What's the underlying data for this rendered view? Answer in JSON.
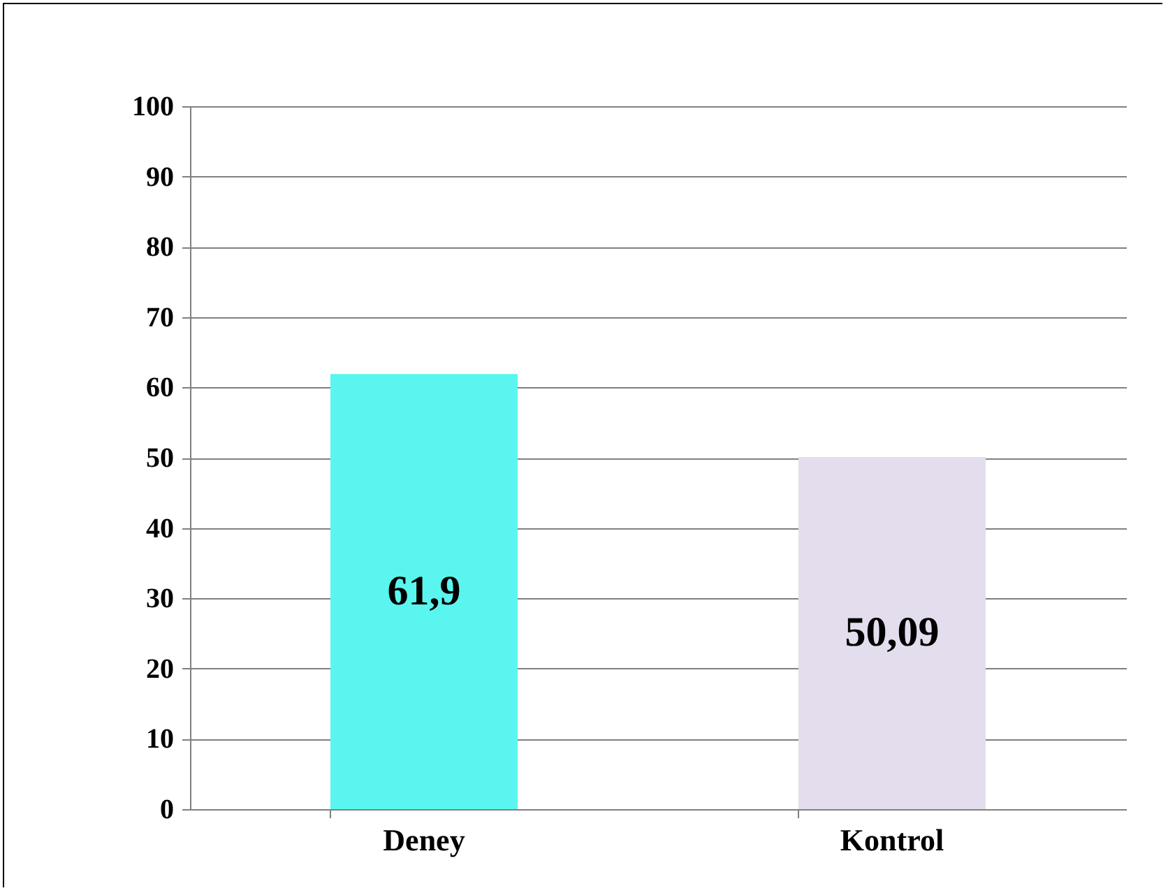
{
  "chart_data": {
    "type": "bar",
    "categories": [
      "Deney",
      "Kontrol"
    ],
    "values": [
      61.9,
      50.09
    ],
    "colors": [
      "#5af5ee",
      "#e3dded"
    ],
    "value_labels": [
      "61,9",
      "50,09"
    ],
    "ylim": [
      0,
      100
    ],
    "yticks": [
      0,
      10,
      20,
      30,
      40,
      50,
      60,
      70,
      80,
      90,
      100
    ],
    "grid": "y"
  }
}
